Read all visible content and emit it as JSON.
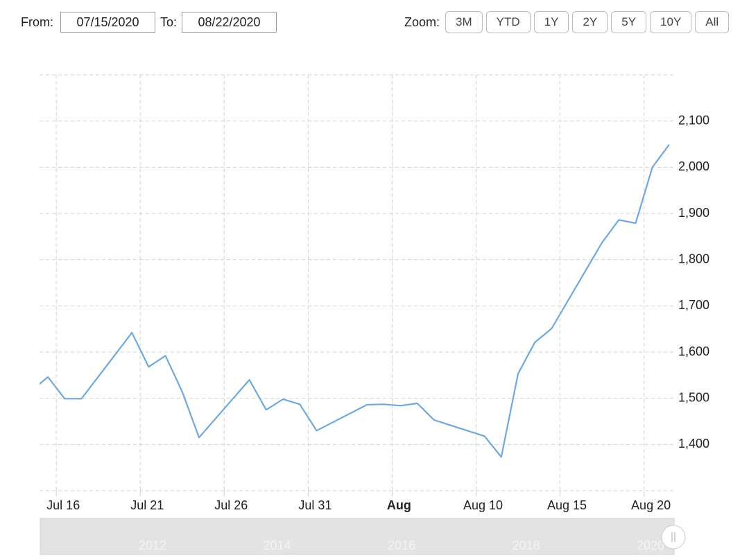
{
  "controls": {
    "from_label": "From:",
    "from_value": "07/15/2020",
    "to_label": "To:",
    "to_value": "08/22/2020",
    "zoom_label": "Zoom:",
    "zoom_buttons": [
      "3M",
      "YTD",
      "1Y",
      "2Y",
      "5Y",
      "10Y",
      "All"
    ]
  },
  "chart_data": {
    "type": "line",
    "x": [
      "2020-07-14",
      "2020-07-15",
      "2020-07-16",
      "2020-07-17",
      "2020-07-20",
      "2020-07-21",
      "2020-07-22",
      "2020-07-23",
      "2020-07-24",
      "2020-07-27",
      "2020-07-28",
      "2020-07-29",
      "2020-07-30",
      "2020-07-31",
      "2020-08-03",
      "2020-08-04",
      "2020-08-05",
      "2020-08-06",
      "2020-08-07",
      "2020-08-10",
      "2020-08-11",
      "2020-08-12",
      "2020-08-13",
      "2020-08-14",
      "2020-08-17",
      "2020-08-18",
      "2020-08-19",
      "2020-08-20",
      "2020-08-21"
    ],
    "series": [
      {
        "color": "#6fa8dc",
        "values": [
          1516,
          1546,
          1499,
          1499,
          1642,
          1568,
          1592,
          1514,
          1415,
          1540,
          1475,
          1498,
          1487,
          1430,
          1486,
          1487,
          1484,
          1489,
          1453,
          1418,
          1373,
          1553,
          1621,
          1651,
          1837,
          1886,
          1879,
          2000,
          2049
        ]
      }
    ],
    "xlim": [
      "2020-07-15",
      "2020-08-22"
    ],
    "xticks": [
      {
        "value": "2020-07-16",
        "label": "Jul 16"
      },
      {
        "value": "2020-07-21",
        "label": "Jul 21"
      },
      {
        "value": "2020-07-26",
        "label": "Jul 26"
      },
      {
        "value": "2020-07-31",
        "label": "Jul 31"
      },
      {
        "value": "2020-08-05",
        "label": "Aug",
        "bold": true
      },
      {
        "value": "2020-08-10",
        "label": "Aug 10"
      },
      {
        "value": "2020-08-15",
        "label": "Aug 15"
      },
      {
        "value": "2020-08-20",
        "label": "Aug 20"
      }
    ],
    "ylim": [
      1300,
      2200
    ],
    "yticks": [
      {
        "value": 1400,
        "label": "1,400"
      },
      {
        "value": 1500,
        "label": "1,500"
      },
      {
        "value": 1600,
        "label": "1,600"
      },
      {
        "value": 1700,
        "label": "1,700"
      },
      {
        "value": 1800,
        "label": "1,800"
      },
      {
        "value": 1900,
        "label": "1,900"
      },
      {
        "value": 2000,
        "label": "2,000"
      },
      {
        "value": 2100,
        "label": "2,100"
      }
    ],
    "grid": true,
    "navigator_labels": [
      "2012",
      "2014",
      "2016",
      "2018",
      "2020"
    ]
  }
}
